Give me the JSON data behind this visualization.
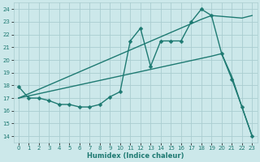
{
  "bg_color": "#cce8ea",
  "grid_color": "#aacdd0",
  "line_color": "#1e7a72",
  "xlabel": "Humidex (Indice chaleur)",
  "xlim": [
    -0.5,
    23.5
  ],
  "ylim": [
    13.5,
    24.5
  ],
  "yticks": [
    14,
    15,
    16,
    17,
    18,
    19,
    20,
    21,
    22,
    23,
    24
  ],
  "xticks": [
    0,
    1,
    2,
    3,
    4,
    5,
    6,
    7,
    8,
    9,
    10,
    11,
    12,
    13,
    14,
    15,
    16,
    17,
    18,
    19,
    20,
    21,
    22,
    23
  ],
  "line1_x": [
    0,
    1,
    2,
    3,
    4,
    5,
    6,
    7,
    8,
    9,
    10,
    11,
    12,
    13,
    14,
    15,
    16,
    17,
    18,
    19,
    20,
    21,
    22,
    23
  ],
  "line1_y": [
    17.9,
    17.0,
    17.0,
    16.8,
    16.5,
    16.5,
    16.3,
    16.3,
    16.5,
    17.1,
    17.5,
    21.5,
    22.5,
    19.5,
    21.5,
    21.5,
    21.5,
    23.0,
    24.0,
    23.5,
    20.5,
    18.5,
    16.3,
    14.0
  ],
  "line2_x": [
    0,
    18,
    19,
    22,
    23
  ],
  "line2_y": [
    17.0,
    23.2,
    23.5,
    23.3,
    23.5
  ],
  "line3_x": [
    0,
    19,
    20,
    21,
    22,
    23
  ],
  "line3_y": [
    17.0,
    20.3,
    20.5,
    18.7,
    16.3,
    14.0
  ],
  "markersize": 2.5,
  "linewidth": 1.0
}
